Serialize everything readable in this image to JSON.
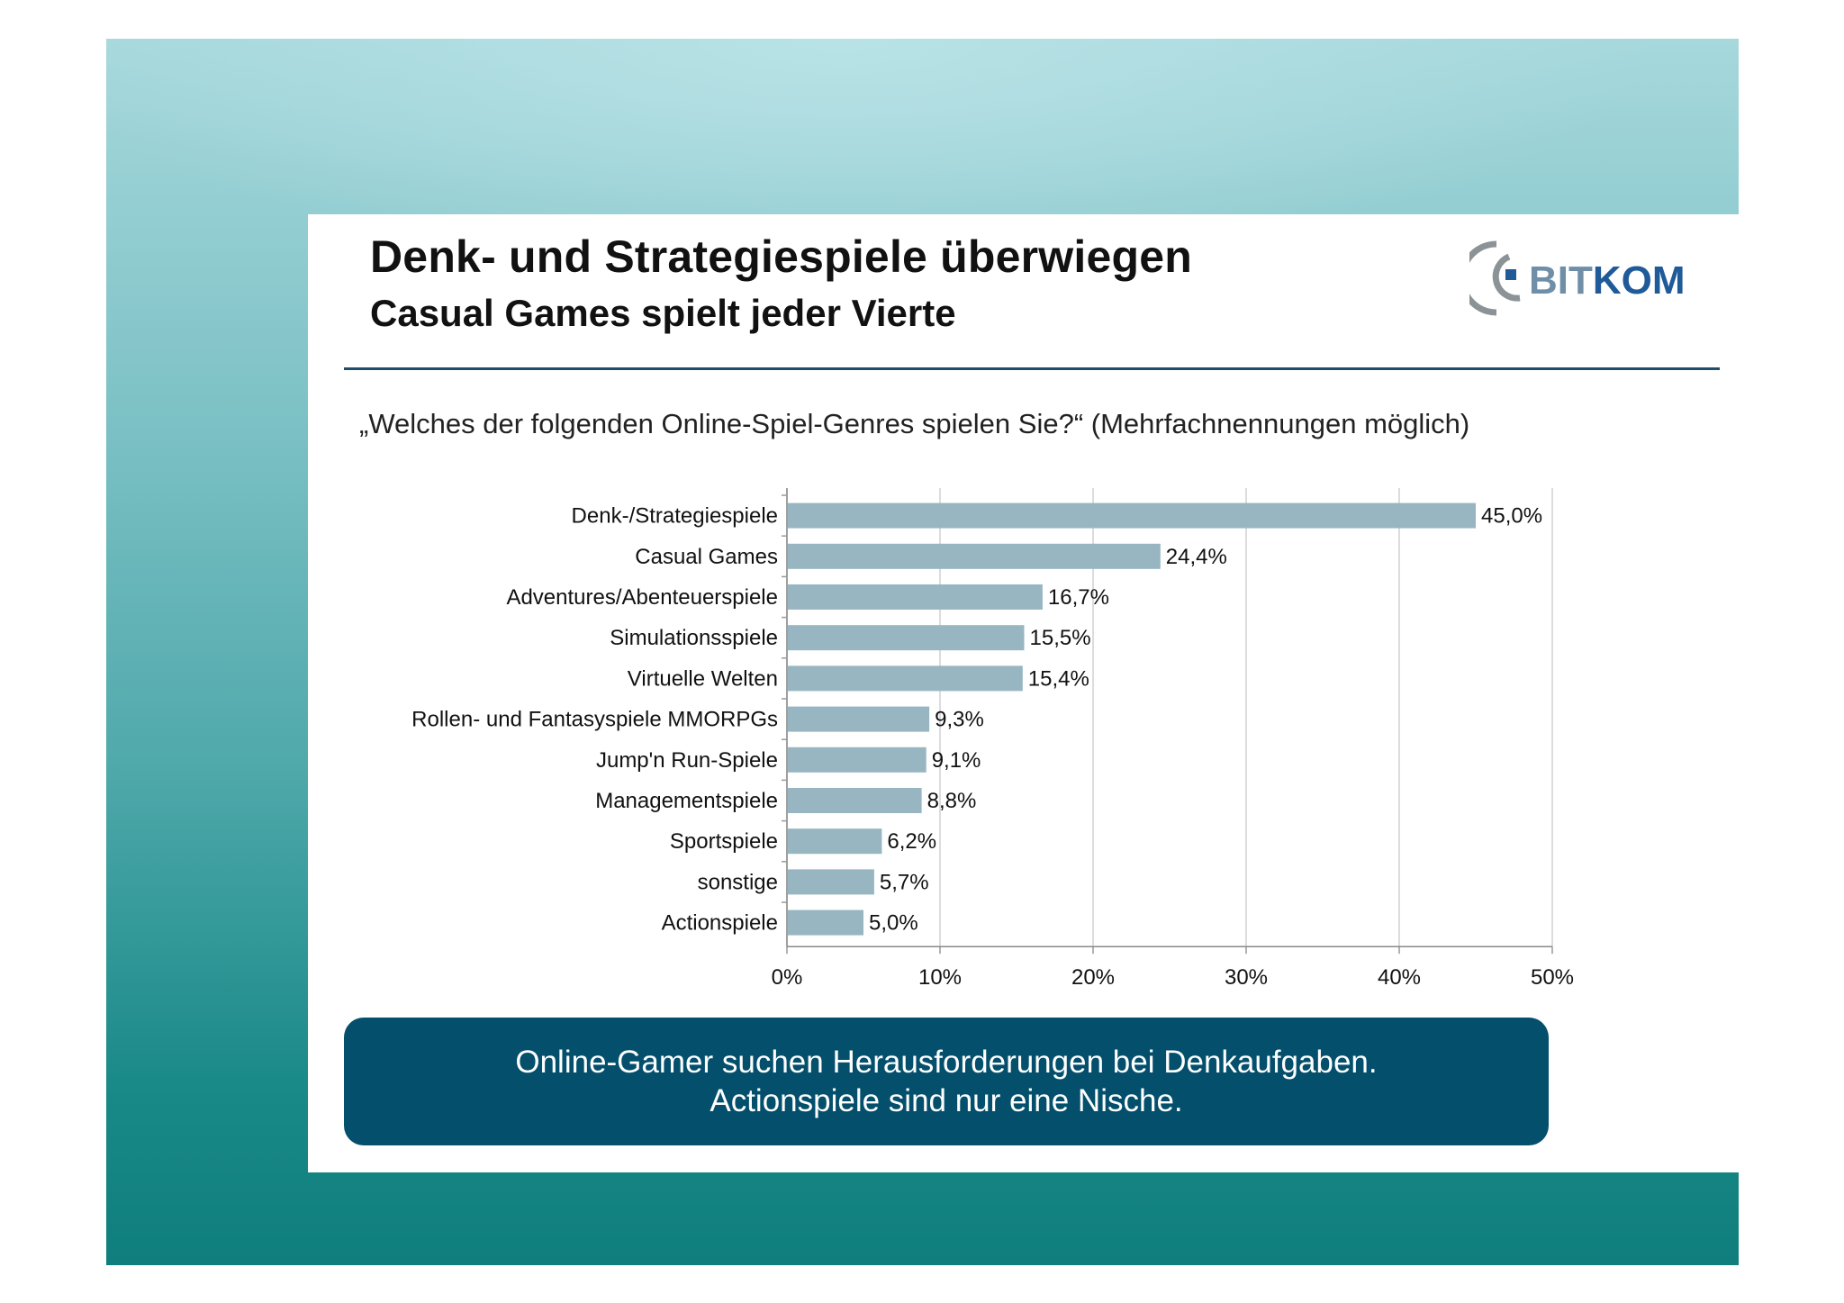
{
  "slide": {
    "title": "Denk- und Strategiespiele überwiegen",
    "subtitle": "Casual Games spielt jeder Vierte",
    "logo_text": "BITKOM",
    "question": "„Welches der folgenden Online-Spiel-Genres spielen Sie?“ (Mehrfachnennungen möglich)",
    "callout": {
      "line1": "Online-Gamer suchen Herausforderungen bei Denkaufgaben.",
      "line2": "Actionspiele sind nur eine Nische."
    }
  },
  "colors": {
    "bar": "#97b6c1",
    "callout_bg": "#034f6c",
    "rule": "#1f4f6b",
    "grid": "#d0d0d0",
    "logo_arc": "#8c9397",
    "logo_blue": "#1f5a99"
  },
  "chart_data": {
    "type": "bar",
    "orientation": "horizontal",
    "title": "„Welches der folgenden Online-Spiel-Genres spielen Sie?“ (Mehrfachnennungen möglich)",
    "categories": [
      "Denk-/Strategiespiele",
      "Casual Games",
      "Adventures/Abenteuerspiele",
      "Simulationsspiele",
      "Virtuelle Welten",
      "Rollen- und Fantasyspiele MMORPGs",
      "Jump'n Run-Spiele",
      "Managementspiele",
      "Sportspiele",
      "sonstige",
      "Actionspiele"
    ],
    "values": [
      45.0,
      24.4,
      16.7,
      15.5,
      15.4,
      9.3,
      9.1,
      8.8,
      6.2,
      5.7,
      5.0
    ],
    "value_labels": [
      "45,0%",
      "24,4%",
      "16,7%",
      "15,5%",
      "15,4%",
      "9,3%",
      "9,1%",
      "8,8%",
      "6,2%",
      "5,7%",
      "5,0%"
    ],
    "xlim": [
      0,
      50
    ],
    "xticks": [
      0,
      10,
      20,
      30,
      40,
      50
    ],
    "xtick_labels": [
      "0%",
      "10%",
      "20%",
      "30%",
      "40%",
      "50%"
    ],
    "xlabel": "",
    "ylabel": "",
    "grid": true
  }
}
